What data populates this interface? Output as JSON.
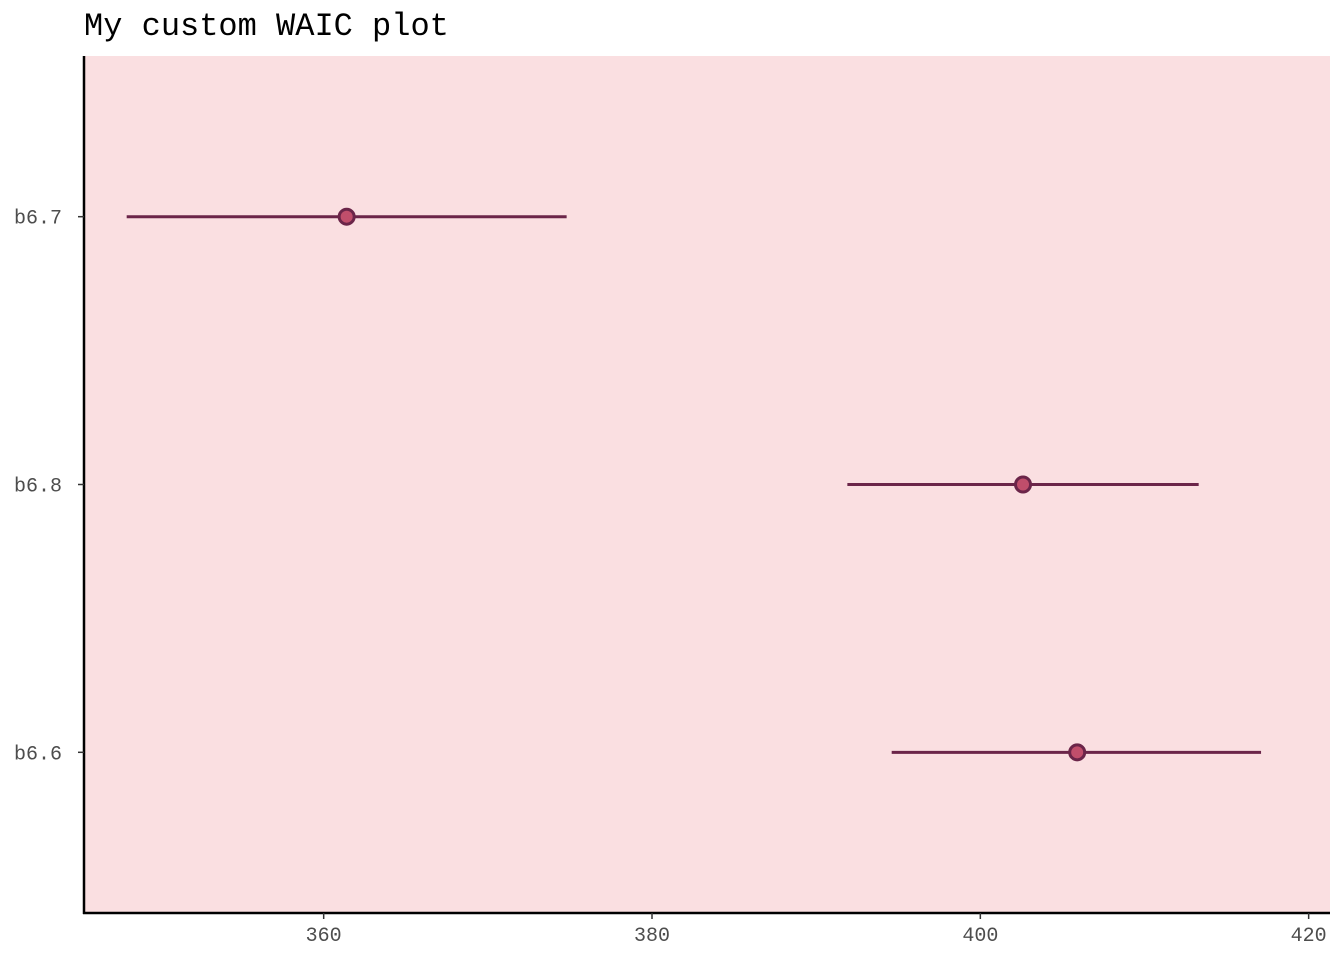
{
  "chart_data": {
    "type": "scatter",
    "title": "My custom WAIC plot",
    "xlabel": "",
    "ylabel": "",
    "xlim": [
      345.4,
      421.3
    ],
    "x_ticks": [
      360,
      380,
      400,
      420
    ],
    "x_tick_labels": [
      "360",
      "380",
      "400",
      "420"
    ],
    "categories": [
      "b6.7",
      "b6.8",
      "b6.6"
    ],
    "series": [
      {
        "points": [
          {
            "model": "b6.7",
            "waic": 361.4,
            "lower": 348.0,
            "upper": 374.8
          },
          {
            "model": "b6.8",
            "waic": 402.6,
            "lower": 391.9,
            "upper": 413.3
          },
          {
            "model": "b6.6",
            "waic": 405.9,
            "lower": 394.6,
            "upper": 417.1
          }
        ]
      }
    ],
    "grid": false,
    "legend": "none",
    "colors": {
      "panel_background": "#fadfe1",
      "line": "#6b2549",
      "point_fill": "#c04e6b",
      "point_stroke": "#6b2549",
      "axis": "#000000",
      "tick_text": "#4d4d4d"
    }
  }
}
